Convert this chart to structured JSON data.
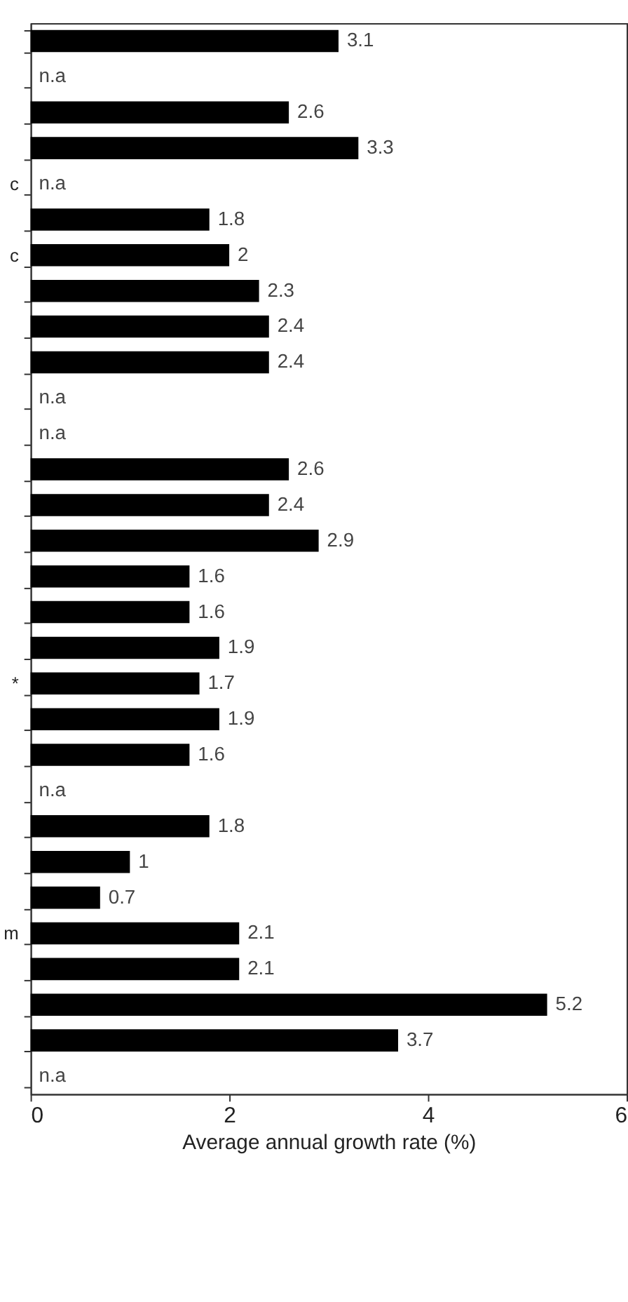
{
  "chart_data": {
    "type": "bar",
    "orientation": "horizontal",
    "xlabel": "Average annual growth rate (%)",
    "categories": [
      null,
      null,
      null,
      null,
      "c",
      null,
      "c",
      null,
      null,
      null,
      null,
      null,
      null,
      null,
      null,
      null,
      null,
      null,
      "*",
      null,
      null,
      null,
      null,
      null,
      null,
      "m",
      null,
      null,
      null,
      null
    ],
    "values": [
      3.1,
      null,
      2.6,
      3.3,
      null,
      1.8,
      2,
      2.3,
      2.4,
      2.4,
      null,
      null,
      2.6,
      2.4,
      2.9,
      1.6,
      1.6,
      1.9,
      1.7,
      1.9,
      1.6,
      null,
      1.8,
      1,
      0.7,
      2.1,
      2.1,
      5.2,
      3.7,
      null
    ],
    "value_labels": [
      "3.1",
      "n.a",
      "2.6",
      "3.3",
      "n.a",
      "1.8",
      "2",
      "2.3",
      "2.4",
      "2.4",
      "n.a",
      "n.a",
      "2.6",
      "2.4",
      "2.9",
      "1.6",
      "1.6",
      "1.9",
      "1.7",
      "1.9",
      "1.6",
      "n.a",
      "1.8",
      "1",
      "0.7",
      "2.1",
      "2.1",
      "5.2",
      "3.7",
      "n.a"
    ],
    "color": "#000000",
    "xlim": [
      0,
      6
    ],
    "xticks": [
      0,
      2,
      4,
      6
    ],
    "grid": false
  }
}
